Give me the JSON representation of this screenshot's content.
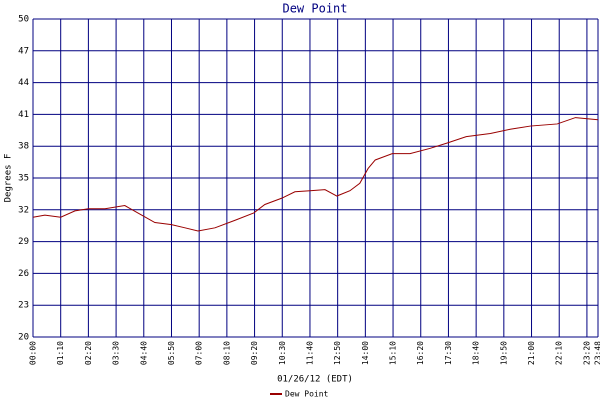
{
  "chart_data": {
    "type": "line",
    "title": "Dew Point",
    "x_label": "01/26/12 (EDT)",
    "y_label": "Degrees F",
    "xlim": [
      0,
      1428
    ],
    "xticks": [
      {
        "value": 0,
        "label": "00:00"
      },
      {
        "value": 70,
        "label": "01:10"
      },
      {
        "value": 140,
        "label": "02:20"
      },
      {
        "value": 210,
        "label": "03:30"
      },
      {
        "value": 280,
        "label": "04:40"
      },
      {
        "value": 350,
        "label": "05:50"
      },
      {
        "value": 420,
        "label": "07:00"
      },
      {
        "value": 490,
        "label": "08:10"
      },
      {
        "value": 560,
        "label": "09:20"
      },
      {
        "value": 630,
        "label": "10:30"
      },
      {
        "value": 700,
        "label": "11:40"
      },
      {
        "value": 770,
        "label": "12:50"
      },
      {
        "value": 840,
        "label": "14:00"
      },
      {
        "value": 910,
        "label": "15:10"
      },
      {
        "value": 980,
        "label": "16:20"
      },
      {
        "value": 1050,
        "label": "17:30"
      },
      {
        "value": 1120,
        "label": "18:40"
      },
      {
        "value": 1190,
        "label": "19:50"
      },
      {
        "value": 1260,
        "label": "21:00"
      },
      {
        "value": 1330,
        "label": "22:10"
      },
      {
        "value": 1400,
        "label": "23:20"
      },
      {
        "value": 1428,
        "label": "23:48"
      }
    ],
    "ylim": [
      20,
      50
    ],
    "yticks": [
      20,
      23,
      26,
      29,
      32,
      35,
      38,
      41,
      44,
      47,
      50
    ],
    "grid": true,
    "x": [
      0,
      30,
      70,
      106,
      140,
      182,
      232,
      270,
      308,
      350,
      384,
      417,
      460,
      510,
      558,
      586,
      629,
      662,
      700,
      738,
      768,
      801,
      826,
      847,
      865,
      908,
      953,
      1004,
      1047,
      1095,
      1156,
      1206,
      1257,
      1325,
      1371,
      1428
    ],
    "series": [
      {
        "name": "Dew Point",
        "color": "#990000",
        "values": [
          31.3,
          31.5,
          31.3,
          31.9,
          32.1,
          32.1,
          32.4,
          31.6,
          30.8,
          30.6,
          30.3,
          30.0,
          30.3,
          31.0,
          31.7,
          32.5,
          33.1,
          33.7,
          33.8,
          33.9,
          33.3,
          33.8,
          34.5,
          35.9,
          36.7,
          37.3,
          37.3,
          37.8,
          38.3,
          38.9,
          39.2,
          39.6,
          39.9,
          40.1,
          40.7,
          40.5
        ]
      }
    ]
  }
}
